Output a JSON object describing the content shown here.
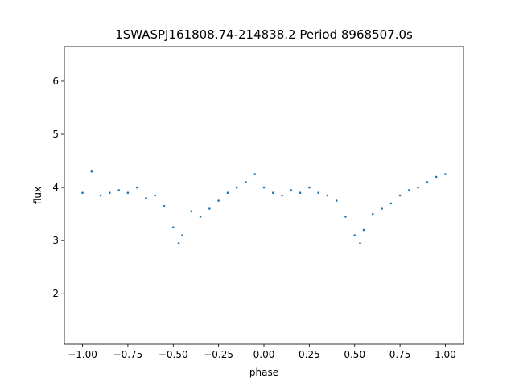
{
  "chart_data": {
    "type": "scatter",
    "title": "1SWASPJ161808.74-214838.2 Period 8968507.0s",
    "xlabel": "phase",
    "ylabel": "flux",
    "xlim": [
      -1.1,
      1.1
    ],
    "ylim": [
      1.05,
      6.65
    ],
    "xticks": [
      -1.0,
      -0.75,
      -0.5,
      -0.25,
      0.0,
      0.25,
      0.5,
      0.75,
      1.0
    ],
    "xtick_labels": [
      "−1.00",
      "−0.75",
      "−0.50",
      "−0.25",
      "0.00",
      "0.25",
      "0.50",
      "0.75",
      "1.00"
    ],
    "yticks": [
      2,
      3,
      4,
      5,
      6
    ],
    "ytick_labels": [
      "2",
      "3",
      "4",
      "5",
      "6"
    ],
    "grid": false,
    "marker_color": "#1f77b4",
    "series": [
      {
        "x": [
          -1.0,
          -0.95,
          -0.9,
          -0.85,
          -0.8,
          -0.75,
          -0.7,
          -0.65,
          -0.6,
          -0.55,
          -0.5,
          -0.47,
          -0.45,
          -0.4,
          -0.35,
          -0.3,
          -0.25,
          -0.2,
          -0.15,
          -0.1,
          -0.05,
          0.0,
          0.05,
          0.1,
          0.15,
          0.2,
          0.25,
          0.3,
          0.35,
          0.4,
          0.45,
          0.5,
          0.53,
          0.55,
          0.6,
          0.65,
          0.7,
          0.75,
          0.8,
          0.85,
          0.9,
          0.95,
          1.0
        ],
        "y": [
          3.9,
          4.3,
          3.85,
          3.9,
          3.95,
          3.9,
          4.0,
          3.8,
          3.85,
          3.65,
          3.25,
          2.95,
          3.1,
          3.55,
          3.45,
          3.6,
          3.75,
          3.9,
          4.0,
          4.1,
          4.25,
          4.0,
          3.9,
          3.85,
          3.95,
          3.9,
          4.0,
          3.9,
          3.85,
          3.75,
          3.45,
          3.1,
          2.95,
          3.2,
          3.5,
          3.6,
          3.7,
          3.85,
          3.95,
          4.0,
          4.1,
          4.2,
          4.25
        ]
      }
    ]
  }
}
